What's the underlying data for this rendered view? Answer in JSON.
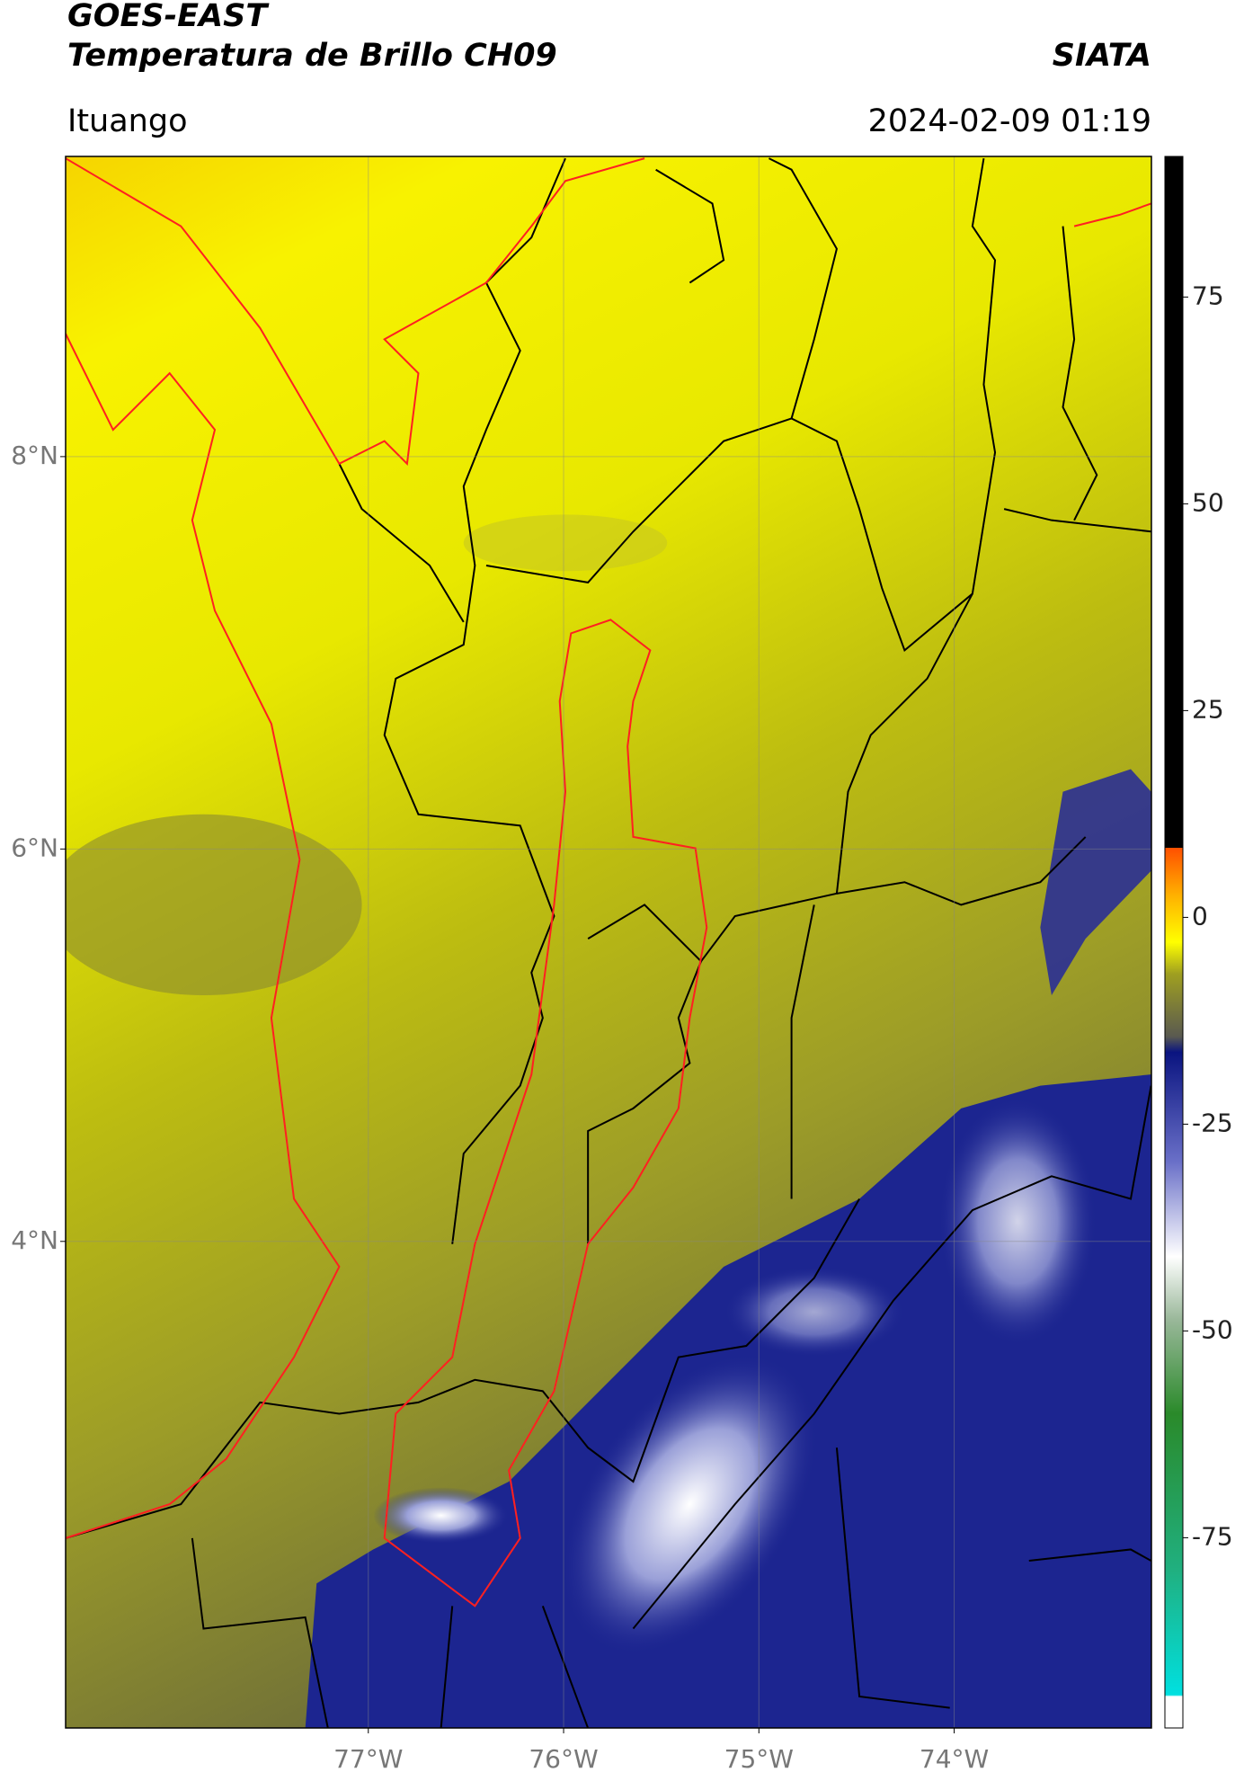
{
  "chart_data": {
    "type": "map",
    "title": "GOES-EAST",
    "subtitle": "Temperatura de Brillo CH09",
    "source": "SIATA",
    "location": "Ituango",
    "datetime": "2024-02-09 01:19",
    "xlim": [
      -78.55,
      -72.99
    ],
    "ylim": [
      1.52,
      9.53
    ],
    "xticks": [
      {
        "value": -77,
        "label": "77°W"
      },
      {
        "value": -76,
        "label": "76°W"
      },
      {
        "value": -75,
        "label": "75°W"
      },
      {
        "value": -74,
        "label": "74°W"
      }
    ],
    "yticks": [
      {
        "value": 4,
        "label": "4°N"
      },
      {
        "value": 6,
        "label": "6°N"
      },
      {
        "value": 8,
        "label": "8°N"
      }
    ],
    "grid": true,
    "colorbar": {
      "clim": [
        -98,
        92
      ],
      "ticks": [
        -75,
        -50,
        -25,
        0,
        25,
        50,
        75
      ]
    }
  }
}
